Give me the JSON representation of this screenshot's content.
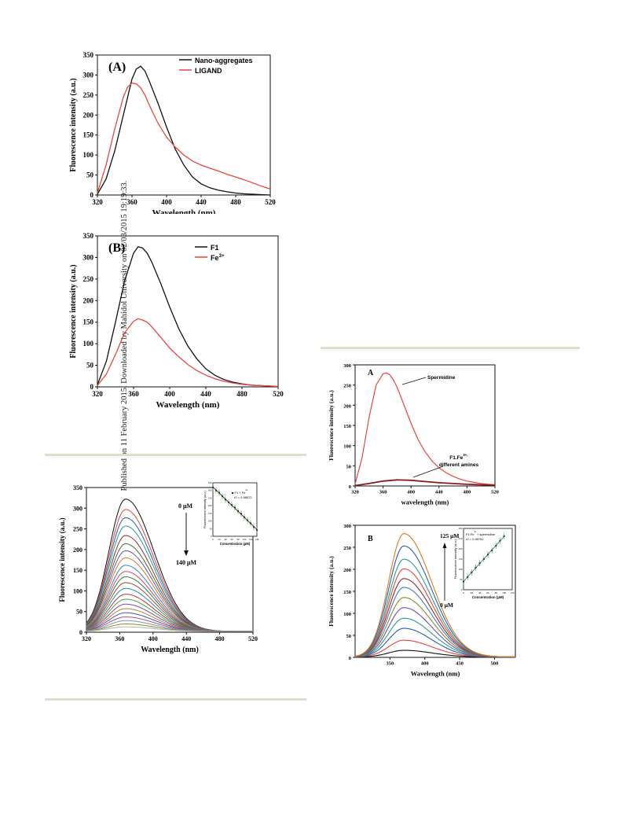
{
  "page": {
    "sidebar_note": "Published on 11 February 2015. Downloaded by Mahidol University on 02/03/2015 19:19:33."
  },
  "chart_data": [
    {
      "id": "fig1A",
      "type": "line",
      "panel_label": "(A)",
      "xlabel": "Wavelength (nm)",
      "ylabel": "Fluorescence intensity (a.u.)",
      "xlim": [
        320,
        520
      ],
      "ylim": [
        0,
        350
      ],
      "xticks": [
        320,
        360,
        400,
        440,
        480,
        520
      ],
      "yticks": [
        0,
        50,
        100,
        150,
        200,
        250,
        300,
        350
      ],
      "legend_position": "top-right",
      "series": [
        {
          "name": "Nano-aggregates",
          "color": "#111111",
          "x": [
            320,
            330,
            340,
            350,
            360,
            365,
            370,
            375,
            380,
            390,
            400,
            410,
            420,
            430,
            440,
            450,
            460,
            470,
            480,
            490,
            500,
            510,
            520
          ],
          "y": [
            2,
            40,
            110,
            200,
            290,
            315,
            322,
            310,
            285,
            230,
            170,
            115,
            75,
            45,
            28,
            18,
            12,
            8,
            5,
            3,
            2,
            1,
            0
          ]
        },
        {
          "name": "LIGAND",
          "color": "#e8453c",
          "x": [
            320,
            330,
            340,
            350,
            355,
            360,
            365,
            370,
            375,
            380,
            390,
            400,
            410,
            420,
            430,
            440,
            450,
            460,
            470,
            480,
            490,
            500,
            510,
            520
          ],
          "y": [
            5,
            75,
            165,
            245,
            270,
            280,
            278,
            268,
            250,
            225,
            180,
            145,
            120,
            100,
            85,
            75,
            67,
            60,
            52,
            45,
            38,
            30,
            22,
            15
          ]
        }
      ]
    },
    {
      "id": "fig1B",
      "type": "line",
      "panel_label": "(B)",
      "xlabel": "Wavelength (nm)",
      "ylabel": "Fluorescence intensity (a.u.)",
      "xlim": [
        320,
        520
      ],
      "ylim": [
        0,
        350
      ],
      "xticks": [
        320,
        360,
        400,
        440,
        480,
        520
      ],
      "yticks": [
        0,
        50,
        100,
        150,
        200,
        250,
        300,
        350
      ],
      "legend_position": "top-right",
      "series": [
        {
          "name": "F1",
          "color": "#111111",
          "x": [
            320,
            330,
            340,
            350,
            360,
            365,
            370,
            375,
            380,
            390,
            400,
            410,
            420,
            430,
            440,
            450,
            460,
            470,
            480,
            490,
            500,
            510,
            520
          ],
          "y": [
            5,
            60,
            150,
            245,
            310,
            325,
            322,
            310,
            290,
            240,
            185,
            135,
            95,
            65,
            42,
            27,
            17,
            11,
            7,
            4,
            3,
            2,
            1
          ]
        },
        {
          "name": "Fe3+",
          "color": "#e8453c",
          "x": [
            320,
            330,
            340,
            350,
            360,
            365,
            370,
            375,
            380,
            390,
            400,
            410,
            420,
            430,
            440,
            450,
            460,
            470,
            480,
            490,
            500,
            510,
            520
          ],
          "y": [
            3,
            30,
            75,
            125,
            152,
            158,
            155,
            150,
            140,
            115,
            90,
            70,
            52,
            38,
            27,
            19,
            13,
            9,
            6,
            4,
            3,
            2,
            1
          ]
        }
      ]
    },
    {
      "id": "fig2",
      "type": "line",
      "xlabel": "Wavelength (nm)",
      "ylabel": "Fluorescence intensity (a.u.)",
      "xlim": [
        320,
        520
      ],
      "ylim": [
        0,
        350
      ],
      "xticks": [
        320,
        360,
        400,
        440,
        480,
        520
      ],
      "yticks": [
        0,
        50,
        100,
        150,
        200,
        250,
        300,
        350
      ],
      "annotation_top": "0 μM",
      "annotation_bottom": "140 μM",
      "peaks": [
        320,
        295,
        275,
        255,
        232,
        212,
        195,
        178,
        160,
        145,
        132,
        118,
        104,
        90,
        78,
        66,
        55,
        45,
        35,
        26,
        18,
        11
      ],
      "colors": [
        "#111111",
        "#e8453c",
        "#2b5fa8",
        "#2a9d8f",
        "#8b2d2d",
        "#4a6b2a",
        "#6a4fb0",
        "#e07a1a",
        "#3a7fc7",
        "#c84a6a",
        "#2b7a4b",
        "#a0522d",
        "#1f8fb0",
        "#b03a3a",
        "#4aa04a",
        "#7a4aa0",
        "#c87a3a",
        "#3a5ab0",
        "#b04a8a",
        "#6aa0b0",
        "#8a8a2a",
        "#b0b0b0"
      ],
      "inset": {
        "legend": [
          "F1 + Fe3+",
          "r2 = 0.98572"
        ],
        "xlabel": "Concentration (μM)",
        "ylabel": "Fluorescence intensity (a.u.)",
        "xlim": [
          0,
          140
        ],
        "ylim": [
          0,
          350
        ],
        "xticks": [
          0,
          20,
          40,
          60,
          80,
          100,
          120,
          140
        ],
        "yticks": [
          0,
          50,
          100,
          150,
          200,
          250,
          300,
          350
        ],
        "x": [
          0,
          10,
          20,
          30,
          40,
          50,
          60,
          70,
          80,
          90,
          100,
          110,
          120,
          130,
          140
        ],
        "y": [
          320,
          300,
          285,
          262,
          240,
          222,
          205,
          188,
          165,
          148,
          125,
          105,
          85,
          60,
          40
        ],
        "fit_color": "#111111",
        "point_color": "#3fa53a"
      }
    },
    {
      "id": "fig3A",
      "type": "line",
      "panel_label": "A",
      "xlabel": "wavelength (nm)",
      "ylabel": "Fluorescence intensity (a.u.)",
      "xlim": [
        320,
        520
      ],
      "ylim": [
        0,
        300
      ],
      "xticks": [
        320,
        360,
        400,
        440,
        480,
        520
      ],
      "yticks": [
        0,
        50,
        100,
        150,
        200,
        250,
        300
      ],
      "annotations": [
        "Spermidine",
        "F1.Fe3+,",
        "different amines"
      ],
      "series": [
        {
          "name": "Spermidine",
          "color": "#e8453c",
          "x": [
            320,
            330,
            340,
            350,
            360,
            365,
            370,
            375,
            380,
            390,
            400,
            410,
            420,
            430,
            440,
            450,
            460,
            470,
            480,
            490,
            500,
            510,
            520
          ],
          "y": [
            5,
            70,
            170,
            250,
            278,
            280,
            275,
            262,
            245,
            200,
            155,
            115,
            85,
            62,
            45,
            33,
            24,
            17,
            12,
            9,
            6,
            4,
            3
          ]
        },
        {
          "name": "F1.Fe3+, different amines",
          "color": "#8b1a1a",
          "x": [
            320,
            340,
            360,
            380,
            400,
            420,
            440,
            460,
            480,
            500,
            520
          ],
          "y": [
            1,
            6,
            12,
            15,
            14,
            11,
            8,
            6,
            4,
            3,
            2
          ]
        }
      ]
    },
    {
      "id": "fig3B",
      "type": "line",
      "panel_label": "B",
      "xlabel": "Wavelength (nm)",
      "ylabel": "Fluorescence intensity (a.u.)",
      "xlim": [
        300,
        530
      ],
      "ylim": [
        0,
        300
      ],
      "xticks": [
        350,
        400,
        450,
        500
      ],
      "yticks": [
        0,
        50,
        100,
        150,
        200,
        250,
        300
      ],
      "annotation_top": "125 μM",
      "annotation_bottom": "0 μM",
      "peaks": [
        15,
        38,
        65,
        88,
        112,
        135,
        158,
        178,
        200,
        222,
        252,
        280
      ],
      "colors": [
        "#111111",
        "#e8453c",
        "#2b5fa8",
        "#2a9d8f",
        "#6a4fb0",
        "#8a8a2a",
        "#3a7fc7",
        "#8b2d2d",
        "#e8453c",
        "#2a9d8f",
        "#2b5fa8",
        "#e07a1a"
      ],
      "inset": {
        "legend": [
          "F1.Fe3+ + spermidine",
          "r2 = 0.98762"
        ],
        "xlabel": "Concentration (μM)",
        "ylabel": "Fluorescence intensity (a.u.)",
        "xlim": [
          0,
          120
        ],
        "ylim": [
          0,
          300
        ],
        "xticks": [
          0,
          20,
          40,
          60,
          80,
          100,
          120
        ],
        "yticks": [
          0,
          50,
          100,
          150,
          200,
          250,
          300
        ],
        "x": [
          0,
          10,
          20,
          30,
          40,
          50,
          60,
          70,
          80,
          90,
          100
        ],
        "y": [
          40,
          62,
          85,
          108,
          130,
          150,
          172,
          192,
          215,
          240,
          262
        ],
        "fit_color": "#2b5fa8",
        "point_color": "#3fa53a"
      }
    }
  ]
}
